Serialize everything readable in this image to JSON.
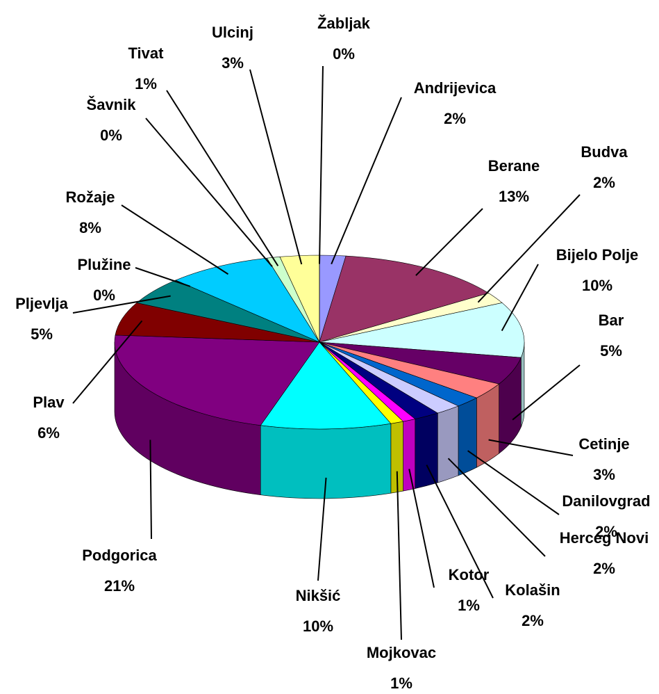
{
  "chart_data": {
    "type": "pie3d",
    "categories": [
      "Andrijevica",
      "Berane",
      "Budva",
      "Bijelo Polje",
      "Bar",
      "Cetinje",
      "Danilovgrad",
      "Herceg Novi",
      "Kolašin",
      "Kotor",
      "Mojkovac",
      "Nikšić",
      "Podgorica",
      "Plav",
      "Pljevlja",
      "Plužine",
      "Rožaje",
      "Šavnik",
      "Tivat",
      "Ulcinj",
      "Žabljak"
    ],
    "values": [
      2,
      13,
      2,
      10,
      5,
      3,
      2,
      2,
      2,
      1,
      1,
      10,
      21,
      6,
      5,
      0,
      8,
      0,
      1,
      3,
      0
    ],
    "value_labels": [
      "2%",
      "13%",
      "2%",
      "10%",
      "5%",
      "3%",
      "2%",
      "2%",
      "2%",
      "1%",
      "1%",
      "10%",
      "21%",
      "6%",
      "5%",
      "0%",
      "8%",
      "0%",
      "1%",
      "3%",
      "0%"
    ],
    "colors": [
      "#9999ff",
      "#993366",
      "#ffffcc",
      "#ccffff",
      "#660066",
      "#ff8080",
      "#0066cc",
      "#ccccff",
      "#000080",
      "#ff00ff",
      "#ffff00",
      "#00ffff",
      "#800080",
      "#800000",
      "#008080",
      "#0000ff",
      "#00ccff",
      "#ccffff",
      "#ccffcc",
      "#ffff99",
      "#9999ff"
    ]
  }
}
